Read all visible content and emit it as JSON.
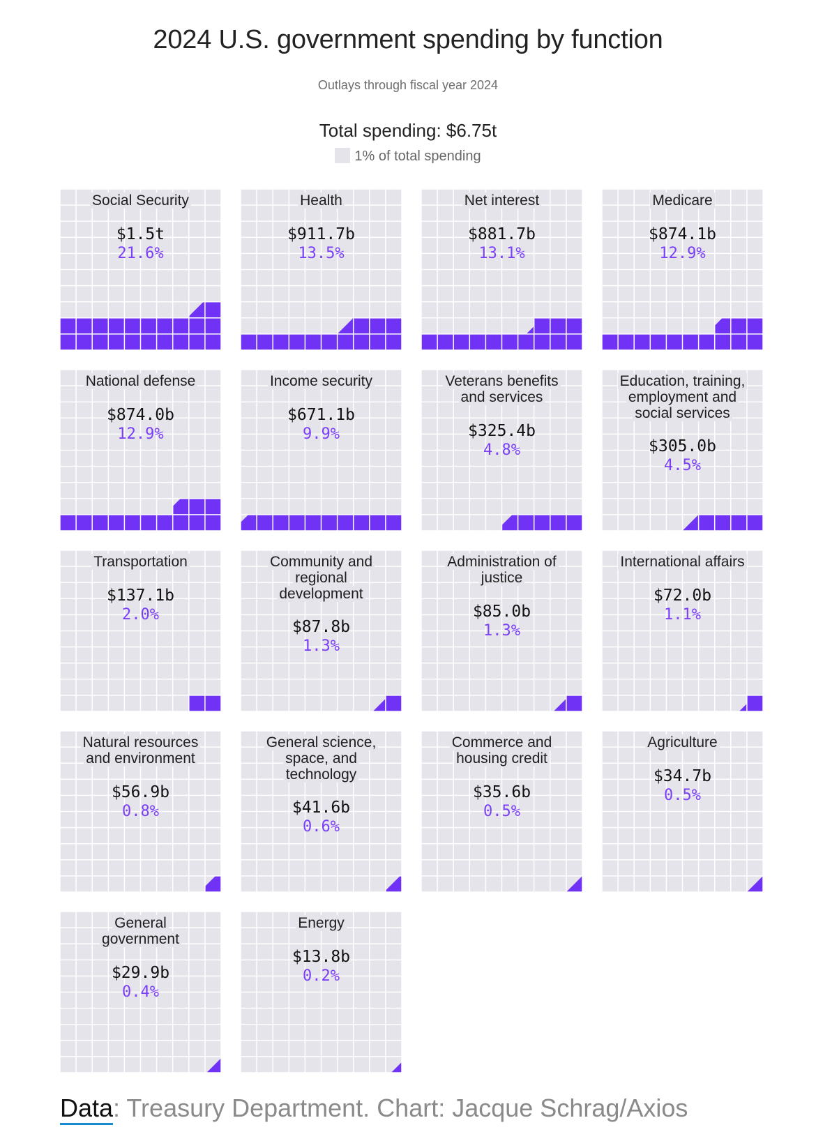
{
  "title": "2024 U.S. government spending by function",
  "subtitle": "Outlays through fiscal year 2024",
  "total_label": "Total spending: $6.75t",
  "legend_label": "1% of total spending",
  "source": {
    "data_word": "Data",
    "rest": ": Treasury Department. Chart: Jacque Schrag/Axios"
  },
  "colors": {
    "filled": "#7033f5",
    "empty": "#e4e4ea",
    "percent_text": "#7b3ff6"
  },
  "chart_data": {
    "type": "waffle",
    "title": "2024 U.S. government spending by function",
    "subtitle": "Outlays through fiscal year 2024",
    "total": "$6.75t",
    "cell_value_percent": 1,
    "grid": [
      10,
      10
    ],
    "categories": [
      {
        "name": "Social Security",
        "amount": "$1.5t",
        "percent_label": "21.6%",
        "percent": 21.6
      },
      {
        "name": "Health",
        "amount": "$911.7b",
        "percent_label": "13.5%",
        "percent": 13.5
      },
      {
        "name": "Net interest",
        "amount": "$881.7b",
        "percent_label": "13.1%",
        "percent": 13.1
      },
      {
        "name": "Medicare",
        "amount": "$874.1b",
        "percent_label": "12.9%",
        "percent": 12.9
      },
      {
        "name": "National defense",
        "amount": "$874.0b",
        "percent_label": "12.9%",
        "percent": 12.9
      },
      {
        "name": "Income security",
        "amount": "$671.1b",
        "percent_label": "9.9%",
        "percent": 9.9
      },
      {
        "name": "Veterans benefits and services",
        "amount": "$325.4b",
        "percent_label": "4.8%",
        "percent": 4.8
      },
      {
        "name": "Education, training, employment and social services",
        "amount": "$305.0b",
        "percent_label": "4.5%",
        "percent": 4.5
      },
      {
        "name": "Transportation",
        "amount": "$137.1b",
        "percent_label": "2.0%",
        "percent": 2.0
      },
      {
        "name": "Community and regional development",
        "amount": "$87.8b",
        "percent_label": "1.3%",
        "percent": 1.3
      },
      {
        "name": "Administration of justice",
        "amount": "$85.0b",
        "percent_label": "1.3%",
        "percent": 1.3
      },
      {
        "name": "International affairs",
        "amount": "$72.0b",
        "percent_label": "1.1%",
        "percent": 1.1
      },
      {
        "name": "Natural resources and environment",
        "amount": "$56.9b",
        "percent_label": "0.8%",
        "percent": 0.8
      },
      {
        "name": "General science, space, and technology",
        "amount": "$41.6b",
        "percent_label": "0.6%",
        "percent": 0.6
      },
      {
        "name": "Commerce and housing credit",
        "amount": "$35.6b",
        "percent_label": "0.5%",
        "percent": 0.5
      },
      {
        "name": "Agriculture",
        "amount": "$34.7b",
        "percent_label": "0.5%",
        "percent": 0.5
      },
      {
        "name": "General government",
        "amount": "$29.9b",
        "percent_label": "0.4%",
        "percent": 0.4
      },
      {
        "name": "Energy",
        "amount": "$13.8b",
        "percent_label": "0.2%",
        "percent": 0.2
      }
    ]
  }
}
